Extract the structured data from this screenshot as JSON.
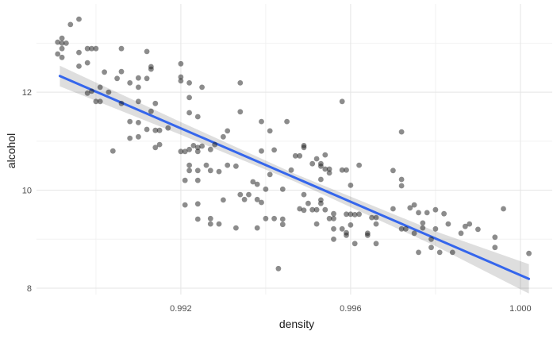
{
  "chart_data": {
    "type": "scatter",
    "title": "",
    "xlabel": "density",
    "ylabel": "alcohol",
    "legend": "none",
    "grid": "major+minor",
    "xlim": [
      0.9886,
      1.00075
    ],
    "ylim": [
      7.87,
      13.8
    ],
    "x_ticks": {
      "major": [
        0.992,
        0.996,
        1.0
      ],
      "labels": [
        "0.992",
        "0.996",
        "1.000"
      ],
      "minor": [
        0.99,
        0.994,
        0.998
      ]
    },
    "y_ticks": {
      "major": [
        12,
        10,
        8
      ],
      "labels": [
        "12",
        "10",
        "8"
      ],
      "minor": [
        13,
        11,
        9
      ]
    },
    "style": {
      "point_color": "rgba(25,25,25,0.5)",
      "point_radius": 3.4,
      "line_color": "#3566EC",
      "band_color": "rgba(0,0,0,0.13)",
      "grid_major": "#E5E5E5",
      "grid_minor": "#F2F2F2",
      "tick_text": "#4D4D4D",
      "title_text": "#1A1A1A",
      "background": "#FFFFFF"
    },
    "smooth": {
      "kind": "linear-fit",
      "x": [
        0.98915,
        1.0002
      ],
      "y": [
        12.33,
        8.19
      ]
    },
    "ci_band": {
      "x": [
        0.98915,
        0.992,
        0.9947,
        0.998,
        1.0002
      ],
      "upper": [
        12.54,
        11.39,
        10.33,
        9.16,
        8.49
      ],
      "lower": [
        12.12,
        11.13,
        10.17,
        8.86,
        7.89
      ]
    },
    "points": [
      [
        0.9894,
        13.38
      ],
      [
        0.9896,
        13.49
      ],
      [
        0.9892,
        13.1
      ],
      [
        0.9891,
        13.02
      ],
      [
        0.9892,
        13.0
      ],
      [
        0.9893,
        13.0
      ],
      [
        0.9892,
        12.89
      ],
      [
        0.9898,
        12.89
      ],
      [
        0.9899,
        12.89
      ],
      [
        0.99,
        12.89
      ],
      [
        0.9906,
        12.89
      ],
      [
        0.9912,
        12.83
      ],
      [
        0.9891,
        12.78
      ],
      [
        0.9892,
        12.71
      ],
      [
        0.9896,
        12.81
      ],
      [
        0.9898,
        12.6
      ],
      [
        0.9896,
        12.53
      ],
      [
        0.9902,
        12.41
      ],
      [
        0.9906,
        12.42
      ],
      [
        0.9913,
        12.52
      ],
      [
        0.9913,
        12.47
      ],
      [
        0.992,
        12.58
      ],
      [
        0.9905,
        12.28
      ],
      [
        0.991,
        12.29
      ],
      [
        0.9912,
        12.28
      ],
      [
        0.9908,
        12.19
      ],
      [
        0.991,
        12.1
      ],
      [
        0.992,
        12.31
      ],
      [
        0.992,
        12.23
      ],
      [
        0.9922,
        12.19
      ],
      [
        0.9925,
        12.1
      ],
      [
        0.9898,
        11.98
      ],
      [
        0.9899,
        12.02
      ],
      [
        0.9901,
        12.1
      ],
      [
        0.9903,
        12.0
      ],
      [
        0.99,
        11.81
      ],
      [
        0.9901,
        11.81
      ],
      [
        0.9906,
        11.77
      ],
      [
        0.991,
        11.81
      ],
      [
        0.9914,
        11.77
      ],
      [
        0.9913,
        11.61
      ],
      [
        0.9922,
        11.89
      ],
      [
        0.9908,
        11.4
      ],
      [
        0.991,
        11.38
      ],
      [
        0.9922,
        11.58
      ],
      [
        0.9924,
        11.5
      ],
      [
        0.9914,
        11.22
      ],
      [
        0.9915,
        11.22
      ],
      [
        0.9912,
        11.24
      ],
      [
        0.9908,
        11.06
      ],
      [
        0.991,
        11.09
      ],
      [
        0.9917,
        11.27
      ],
      [
        0.9928,
        10.93
      ],
      [
        0.9923,
        10.91
      ],
      [
        0.9925,
        10.9
      ],
      [
        0.9915,
        10.93
      ],
      [
        0.9934,
        12.19
      ],
      [
        0.9958,
        11.81
      ],
      [
        0.9934,
        11.6
      ],
      [
        0.9939,
        11.4
      ],
      [
        0.9945,
        11.4
      ],
      [
        0.9941,
        11.21
      ],
      [
        0.9931,
        11.21
      ],
      [
        0.993,
        11.09
      ],
      [
        0.9949,
        10.91
      ],
      [
        0.9972,
        11.19
      ],
      [
        0.9904,
        10.8
      ],
      [
        0.9914,
        10.87
      ],
      [
        0.992,
        10.79
      ],
      [
        0.9921,
        10.79
      ],
      [
        0.9922,
        10.83
      ],
      [
        0.9924,
        10.87
      ],
      [
        0.9924,
        10.79
      ],
      [
        0.9927,
        10.83
      ],
      [
        0.9922,
        10.51
      ],
      [
        0.9922,
        10.4
      ],
      [
        0.9924,
        10.4
      ],
      [
        0.9926,
        10.51
      ],
      [
        0.9927,
        10.4
      ],
      [
        0.9921,
        10.2
      ],
      [
        0.9924,
        10.2
      ],
      [
        0.9921,
        9.7
      ],
      [
        0.9924,
        9.72
      ],
      [
        0.9924,
        9.41
      ],
      [
        0.9927,
        9.42
      ],
      [
        0.9927,
        9.31
      ],
      [
        0.9939,
        10.8
      ],
      [
        0.9942,
        10.82
      ],
      [
        0.9947,
        10.7
      ],
      [
        0.9948,
        10.7
      ],
      [
        0.9949,
        10.87
      ],
      [
        0.9952,
        10.64
      ],
      [
        0.9954,
        10.72
      ],
      [
        0.9929,
        10.38
      ],
      [
        0.9931,
        10.51
      ],
      [
        0.9933,
        10.49
      ],
      [
        0.9946,
        10.41
      ],
      [
        0.9951,
        10.54
      ],
      [
        0.9953,
        10.54
      ],
      [
        0.9953,
        10.49
      ],
      [
        0.9954,
        10.43
      ],
      [
        0.9955,
        10.43
      ],
      [
        0.9955,
        10.35
      ],
      [
        0.9958,
        10.41
      ],
      [
        0.9959,
        10.41
      ],
      [
        0.9962,
        10.51
      ],
      [
        0.9941,
        10.32
      ],
      [
        0.9953,
        10.22
      ],
      [
        0.9937,
        10.17
      ],
      [
        0.9938,
        10.12
      ],
      [
        0.994,
        10.02
      ],
      [
        0.9944,
        10.02
      ],
      [
        0.996,
        10.1
      ],
      [
        0.9934,
        9.91
      ],
      [
        0.9936,
        9.91
      ],
      [
        0.993,
        9.8
      ],
      [
        0.9935,
        9.81
      ],
      [
        0.9938,
        9.81
      ],
      [
        0.9939,
        9.75
      ],
      [
        0.9949,
        9.91
      ],
      [
        0.995,
        9.73
      ],
      [
        0.9953,
        9.8
      ],
      [
        0.9953,
        9.73
      ],
      [
        0.9948,
        9.62
      ],
      [
        0.9949,
        9.59
      ],
      [
        0.9951,
        9.6
      ],
      [
        0.9952,
        9.6
      ],
      [
        0.9954,
        9.6
      ],
      [
        0.9956,
        9.52
      ],
      [
        0.9955,
        9.42
      ],
      [
        0.9956,
        9.42
      ],
      [
        0.9959,
        9.51
      ],
      [
        0.996,
        9.51
      ],
      [
        0.9961,
        9.5
      ],
      [
        0.9962,
        9.51
      ],
      [
        0.9965,
        9.44
      ],
      [
        0.9966,
        9.44
      ],
      [
        0.9966,
        9.31
      ],
      [
        0.994,
        9.42
      ],
      [
        0.9942,
        9.42
      ],
      [
        0.9944,
        9.41
      ],
      [
        0.9929,
        9.31
      ],
      [
        0.9933,
        9.23
      ],
      [
        0.9938,
        9.23
      ],
      [
        0.9944,
        9.3
      ],
      [
        0.9952,
        9.31
      ],
      [
        0.9956,
        9.21
      ],
      [
        0.9958,
        9.21
      ],
      [
        0.9959,
        9.13
      ],
      [
        0.996,
        9.29
      ],
      [
        0.9964,
        9.12
      ],
      [
        0.9956,
        9.0
      ],
      [
        0.9959,
        9.08
      ],
      [
        0.9961,
        8.91
      ],
      [
        0.9964,
        9.08
      ],
      [
        0.9966,
        8.91
      ],
      [
        0.9943,
        8.4
      ],
      [
        0.997,
        10.4
      ],
      [
        0.9972,
        10.22
      ],
      [
        0.9972,
        10.09
      ],
      [
        0.997,
        9.62
      ],
      [
        0.9974,
        9.64
      ],
      [
        0.9975,
        9.7
      ],
      [
        0.9976,
        9.54
      ],
      [
        0.9978,
        9.54
      ],
      [
        0.998,
        9.6
      ],
      [
        0.9982,
        9.52
      ],
      [
        0.9972,
        9.21
      ],
      [
        0.9973,
        9.21
      ],
      [
        0.9975,
        9.12
      ],
      [
        0.9977,
        9.33
      ],
      [
        0.9977,
        9.23
      ],
      [
        0.998,
        9.21
      ],
      [
        0.9979,
        9.0
      ],
      [
        0.9983,
        9.31
      ],
      [
        0.9986,
        9.12
      ],
      [
        0.9987,
        9.26
      ],
      [
        0.9988,
        9.31
      ],
      [
        0.999,
        9.2
      ],
      [
        0.9994,
        9.04
      ],
      [
        0.9994,
        8.83
      ],
      [
        0.9976,
        8.73
      ],
      [
        0.9979,
        8.83
      ],
      [
        0.9981,
        8.73
      ],
      [
        0.9984,
        8.73
      ],
      [
        0.9996,
        9.62
      ],
      [
        1.0002,
        8.71
      ]
    ]
  }
}
